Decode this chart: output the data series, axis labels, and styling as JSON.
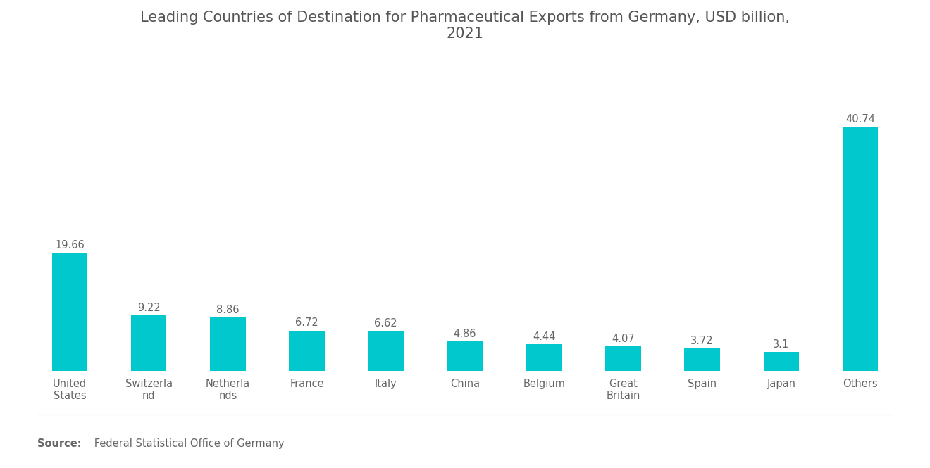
{
  "title": "Leading Countries of Destination for Pharmaceutical Exports from Germany, USD billion,\n2021",
  "categories": [
    "United\nStates",
    "Switzerla\nnd",
    "Netherla\nnds",
    "France",
    "Italy",
    "China",
    "Belgium",
    "Great\nBritain",
    "Spain",
    "Japan",
    "Others"
  ],
  "values": [
    19.66,
    9.22,
    8.86,
    6.72,
    6.62,
    4.86,
    4.44,
    4.07,
    3.72,
    3.1,
    40.74
  ],
  "bar_color": "#00C8CC",
  "background_color": "#ffffff",
  "title_color": "#555555",
  "label_color": "#666666",
  "value_color": "#666666",
  "source_label_bold": "Source:",
  "source_label_normal": "   Federal Statistical Office of Germany",
  "ylim": [
    0,
    52
  ],
  "title_fontsize": 15,
  "label_fontsize": 10.5,
  "value_fontsize": 10.5,
  "source_fontsize": 10.5,
  "bar_width": 0.45
}
